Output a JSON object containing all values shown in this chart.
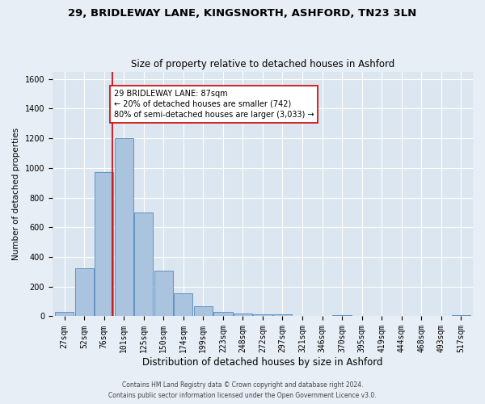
{
  "title1": "29, BRIDLEWAY LANE, KINGSNORTH, ASHFORD, TN23 3LN",
  "title2": "Size of property relative to detached houses in Ashford",
  "xlabel": "Distribution of detached houses by size in Ashford",
  "ylabel": "Number of detached properties",
  "footer1": "Contains HM Land Registry data © Crown copyright and database right 2024.",
  "footer2": "Contains public sector information licensed under the Open Government Licence v3.0.",
  "bin_labels": [
    "27sqm",
    "52sqm",
    "76sqm",
    "101sqm",
    "125sqm",
    "150sqm",
    "174sqm",
    "199sqm",
    "223sqm",
    "248sqm",
    "272sqm",
    "297sqm",
    "321sqm",
    "346sqm",
    "370sqm",
    "395sqm",
    "419sqm",
    "444sqm",
    "468sqm",
    "493sqm",
    "517sqm"
  ],
  "bar_values": [
    30,
    325,
    970,
    1200,
    700,
    305,
    155,
    70,
    30,
    20,
    15,
    15,
    0,
    0,
    10,
    0,
    0,
    0,
    0,
    0,
    10
  ],
  "bar_color": "#aac4e0",
  "bar_edge_color": "#5588bb",
  "vline_color": "#cc0000",
  "annotation_text": "29 BRIDLEWAY LANE: 87sqm\n← 20% of detached houses are smaller (742)\n80% of semi-detached houses are larger (3,033) →",
  "annotation_box_color": "#ffffff",
  "annotation_box_edge": "#cc0000",
  "ylim": [
    0,
    1650
  ],
  "bg_color": "#dce6f0",
  "fig_bg_color": "#e8eef5",
  "grid_color": "#ffffff",
  "title1_fontsize": 9.5,
  "title2_fontsize": 8.5,
  "xlabel_fontsize": 8.5,
  "ylabel_fontsize": 7.5,
  "tick_fontsize": 7,
  "annot_fontsize": 7,
  "footer_fontsize": 5.5
}
